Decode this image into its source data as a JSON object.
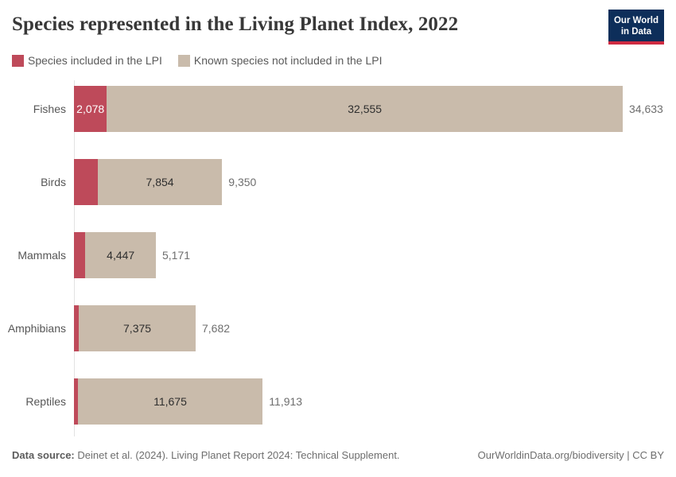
{
  "header": {
    "title": "Species represented in the Living Planet Index, 2022",
    "logo": {
      "line1": "Our World",
      "line2": "in Data"
    }
  },
  "legend": [
    {
      "label": "Species included in the LPI",
      "color": "#be4a5a"
    },
    {
      "label": "Known species not included in the LPI",
      "color": "#c9bbab"
    }
  ],
  "chart_data": {
    "type": "bar",
    "orientation": "horizontal",
    "stacked": true,
    "title": "Species represented in the Living Planet Index, 2022",
    "categories": [
      "Fishes",
      "Birds",
      "Mammals",
      "Amphibians",
      "Reptiles"
    ],
    "series": [
      {
        "name": "Species included in the LPI",
        "color": "#be4a5a",
        "values": [
          2078,
          1496,
          724,
          307,
          238
        ]
      },
      {
        "name": "Known species not included in the LPI",
        "color": "#c9bbab",
        "values": [
          32555,
          7854,
          4447,
          7375,
          11675
        ]
      }
    ],
    "totals": [
      34633,
      9350,
      5171,
      7682,
      11913
    ],
    "xmax": 34633,
    "grid": false,
    "legend_position": "top"
  },
  "colors": {
    "lpi_red": "#be4a5a",
    "not_included_beige": "#c9bbab",
    "axis_line": "#e2e2e2",
    "logo_navy": "#0d2e5a",
    "logo_red": "#cf2b41"
  },
  "footer": {
    "source_label": "Data source:",
    "source_text": " Deinet et al. (2024). Living Planet Report 2024: Technical Supplement.",
    "right_text": "OurWorldinData.org/biodiversity | CC BY"
  }
}
